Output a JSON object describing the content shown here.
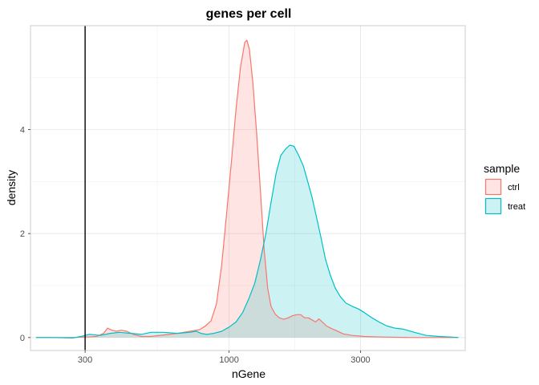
{
  "chart_data": {
    "type": "area",
    "title": "genes per cell",
    "xlabel": "nGene",
    "ylabel": "density",
    "x_scale": "log10",
    "xlim": [
      190,
      7200
    ],
    "ylim": [
      -0.25,
      6.0
    ],
    "x_ticks": [
      300,
      1000,
      3000
    ],
    "x_tick_labels": [
      "300",
      "1000",
      "3000"
    ],
    "y_ticks": [
      0,
      2,
      4
    ],
    "y_tick_labels": [
      "0",
      "2",
      "4"
    ],
    "grid": true,
    "vline_x": 300,
    "legend": {
      "title": "sample",
      "position": "right"
    },
    "series": [
      {
        "name": "ctrl",
        "color": "#F8766D",
        "fill": "#F8766D",
        "points": [
          [
            199,
            0.0
          ],
          [
            230,
            0.0
          ],
          [
            270,
            0.0
          ],
          [
            300,
            0.01
          ],
          [
            330,
            0.02
          ],
          [
            350,
            0.08
          ],
          [
            362,
            0.18
          ],
          [
            375,
            0.14
          ],
          [
            390,
            0.12
          ],
          [
            405,
            0.14
          ],
          [
            425,
            0.12
          ],
          [
            450,
            0.06
          ],
          [
            480,
            0.02
          ],
          [
            520,
            0.02
          ],
          [
            580,
            0.05
          ],
          [
            650,
            0.08
          ],
          [
            720,
            0.12
          ],
          [
            780,
            0.15
          ],
          [
            820,
            0.22
          ],
          [
            860,
            0.32
          ],
          [
            900,
            0.65
          ],
          [
            940,
            1.4
          ],
          [
            980,
            2.4
          ],
          [
            1020,
            3.4
          ],
          [
            1060,
            4.4
          ],
          [
            1100,
            5.2
          ],
          [
            1140,
            5.68
          ],
          [
            1160,
            5.72
          ],
          [
            1185,
            5.55
          ],
          [
            1220,
            4.9
          ],
          [
            1260,
            3.9
          ],
          [
            1300,
            2.8
          ],
          [
            1340,
            1.7
          ],
          [
            1380,
            0.95
          ],
          [
            1420,
            0.6
          ],
          [
            1470,
            0.45
          ],
          [
            1520,
            0.38
          ],
          [
            1580,
            0.35
          ],
          [
            1640,
            0.38
          ],
          [
            1700,
            0.42
          ],
          [
            1760,
            0.44
          ],
          [
            1820,
            0.44
          ],
          [
            1880,
            0.38
          ],
          [
            1940,
            0.38
          ],
          [
            2000,
            0.34
          ],
          [
            2060,
            0.3
          ],
          [
            2120,
            0.36
          ],
          [
            2180,
            0.3
          ],
          [
            2260,
            0.22
          ],
          [
            2360,
            0.17
          ],
          [
            2460,
            0.13
          ],
          [
            2600,
            0.07
          ],
          [
            2800,
            0.04
          ],
          [
            3100,
            0.02
          ],
          [
            3600,
            0.01
          ],
          [
            4500,
            0.0
          ],
          [
            5500,
            0.0
          ],
          [
            6800,
            0.0
          ]
        ]
      },
      {
        "name": "treat",
        "color": "#00BFC4",
        "fill": "#00BFC4",
        "points": [
          [
            199,
            0.0
          ],
          [
            230,
            0.0
          ],
          [
            270,
            -0.01
          ],
          [
            290,
            0.02
          ],
          [
            310,
            0.06
          ],
          [
            340,
            0.04
          ],
          [
            370,
            0.08
          ],
          [
            400,
            0.1
          ],
          [
            440,
            0.08
          ],
          [
            480,
            0.06
          ],
          [
            520,
            0.1
          ],
          [
            580,
            0.1
          ],
          [
            650,
            0.08
          ],
          [
            720,
            0.1
          ],
          [
            760,
            0.12
          ],
          [
            790,
            0.08
          ],
          [
            830,
            0.06
          ],
          [
            880,
            0.08
          ],
          [
            940,
            0.12
          ],
          [
            1000,
            0.2
          ],
          [
            1060,
            0.3
          ],
          [
            1120,
            0.48
          ],
          [
            1180,
            0.75
          ],
          [
            1240,
            1.05
          ],
          [
            1300,
            1.5
          ],
          [
            1360,
            2.0
          ],
          [
            1420,
            2.6
          ],
          [
            1480,
            3.15
          ],
          [
            1540,
            3.5
          ],
          [
            1600,
            3.62
          ],
          [
            1660,
            3.7
          ],
          [
            1720,
            3.68
          ],
          [
            1790,
            3.5
          ],
          [
            1860,
            3.3
          ],
          [
            1930,
            3.0
          ],
          [
            2000,
            2.7
          ],
          [
            2070,
            2.35
          ],
          [
            2150,
            1.95
          ],
          [
            2240,
            1.5
          ],
          [
            2330,
            1.2
          ],
          [
            2430,
            0.95
          ],
          [
            2540,
            0.78
          ],
          [
            2660,
            0.66
          ],
          [
            2800,
            0.6
          ],
          [
            2950,
            0.55
          ],
          [
            3100,
            0.48
          ],
          [
            3300,
            0.38
          ],
          [
            3500,
            0.3
          ],
          [
            3750,
            0.22
          ],
          [
            4000,
            0.18
          ],
          [
            4300,
            0.16
          ],
          [
            4700,
            0.1
          ],
          [
            5200,
            0.04
          ],
          [
            5800,
            0.02
          ],
          [
            6400,
            0.01
          ],
          [
            6800,
            0.0
          ]
        ]
      }
    ]
  }
}
